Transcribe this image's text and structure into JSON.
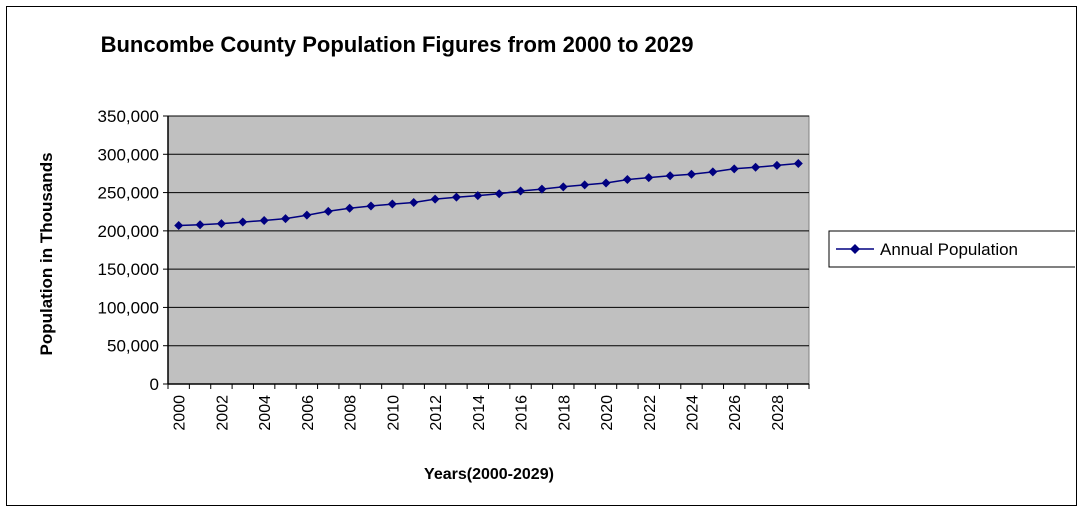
{
  "chart_data": {
    "type": "line",
    "title": "Buncombe County Population Figures from 2000 to 2029",
    "xlabel": "Years(2000-2029)",
    "ylabel": "Population in Thousands",
    "ylim": [
      0,
      350000
    ],
    "yticks": [
      0,
      50000,
      100000,
      150000,
      200000,
      250000,
      300000,
      350000
    ],
    "ytick_labels": [
      "0",
      "50,000",
      "100,000",
      "150,000",
      "200,000",
      "250,000",
      "300,000",
      "350,000"
    ],
    "xticks": [
      2000,
      2002,
      2004,
      2006,
      2008,
      2010,
      2012,
      2014,
      2016,
      2018,
      2020,
      2022,
      2024,
      2026,
      2028
    ],
    "xtick_labels": [
      "2000",
      "2002",
      "2004",
      "2006",
      "2008",
      "2010",
      "2012",
      "2014",
      "2016",
      "2018",
      "2020",
      "2022",
      "2024",
      "2026",
      "2028"
    ],
    "grid": true,
    "legend_position": "right",
    "x": [
      2000,
      2001,
      2002,
      2003,
      2004,
      2005,
      2006,
      2007,
      2008,
      2009,
      2010,
      2011,
      2012,
      2013,
      2014,
      2015,
      2016,
      2017,
      2018,
      2019,
      2020,
      2021,
      2022,
      2023,
      2024,
      2025,
      2026,
      2027,
      2028,
      2029
    ],
    "series": [
      {
        "name": "Annual Population",
        "color": "#000080",
        "marker": "diamond",
        "values": [
          207000,
          208000,
          209500,
          211500,
          213500,
          216000,
          220500,
          225500,
          229500,
          232500,
          235000,
          237000,
          241500,
          244000,
          246000,
          248500,
          252000,
          254500,
          257500,
          260000,
          262500,
          267000,
          269500,
          272000,
          274000,
          277000,
          281000,
          283000,
          285500,
          288000
        ]
      }
    ],
    "plot_background": "#c0c0c0"
  }
}
